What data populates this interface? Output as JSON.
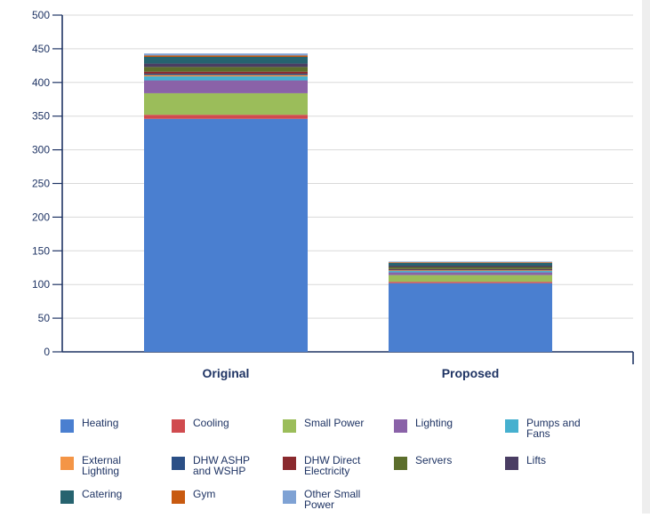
{
  "chart_data": {
    "type": "bar",
    "stacked": true,
    "categories": [
      "Original",
      "Proposed"
    ],
    "ylim": [
      0,
      500
    ],
    "yticks": [
      0,
      50,
      100,
      150,
      200,
      250,
      300,
      350,
      400,
      450,
      500
    ],
    "grid": true,
    "legend_position": "bottom",
    "series": [
      {
        "name": "Heating",
        "color": "#4a7fd0",
        "values": [
          346,
          102
        ]
      },
      {
        "name": "Cooling",
        "color": "#d04b4f",
        "values": [
          6,
          2
        ]
      },
      {
        "name": "Small Power",
        "color": "#9bbd5a",
        "values": [
          32,
          10
        ]
      },
      {
        "name": "Lighting",
        "color": "#8a62a8",
        "values": [
          19,
          4
        ]
      },
      {
        "name": "Pumps and Fans",
        "color": "#46b0cf",
        "values": [
          6,
          2
        ]
      },
      {
        "name": "External\nLighting",
        "color": "#f49546",
        "values": [
          2,
          1
        ]
      },
      {
        "name": "DHW ASHP\nand WSHP",
        "color": "#2b4f86",
        "values": [
          2,
          1
        ]
      },
      {
        "name": "DHW Direct\nElectricity",
        "color": "#8a2a2e",
        "values": [
          3,
          1
        ]
      },
      {
        "name": "Servers",
        "color": "#5c6e2c",
        "values": [
          7,
          3
        ]
      },
      {
        "name": "Lifts",
        "color": "#4a3d63",
        "values": [
          5,
          2
        ]
      },
      {
        "name": "Catering",
        "color": "#26636f",
        "values": [
          10,
          4
        ]
      },
      {
        "name": "Gym",
        "color": "#c85a10",
        "values": [
          2,
          1
        ]
      },
      {
        "name": "Other Small\nPower",
        "color": "#7fa2d4",
        "values": [
          3,
          1
        ]
      }
    ]
  }
}
